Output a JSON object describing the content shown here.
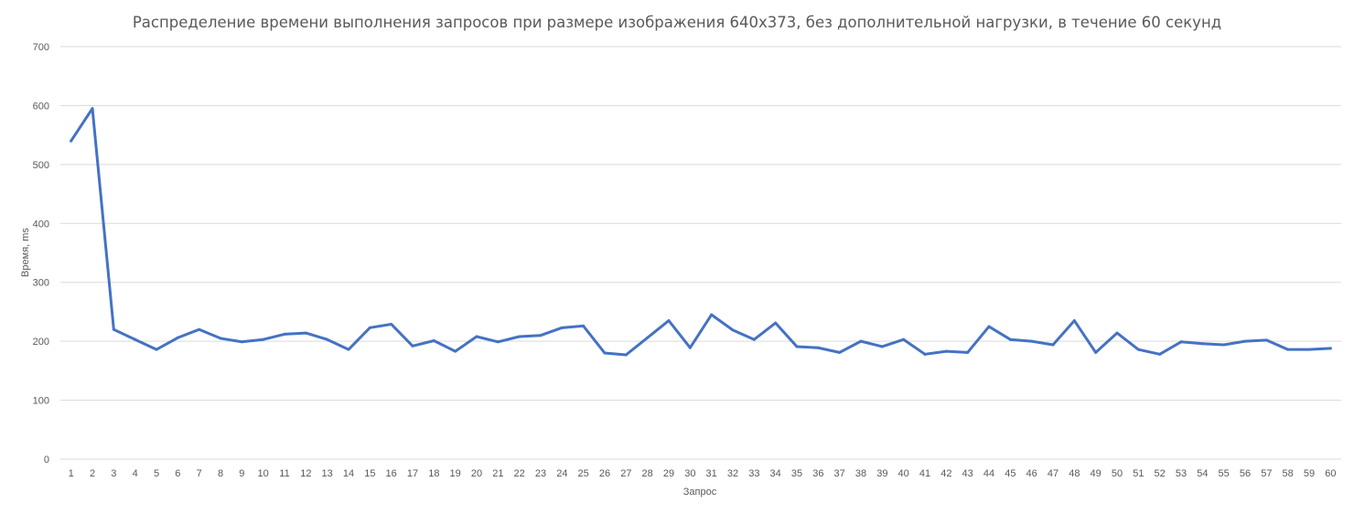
{
  "chart_data": {
    "type": "line",
    "title": "Распределение времени выполнения запросов при размере изображения 640x373, без дополнительной нагрузки, в течение 60 секунд",
    "xlabel": "Запрос",
    "ylabel": "Время, ms",
    "ylim": [
      0,
      700
    ],
    "yticks": [
      0,
      100,
      200,
      300,
      400,
      500,
      600,
      700
    ],
    "grid": true,
    "legend": "none",
    "line_color": "#4472c4",
    "categories": [
      "1",
      "2",
      "3",
      "4",
      "5",
      "6",
      "7",
      "8",
      "9",
      "10",
      "11",
      "12",
      "13",
      "14",
      "15",
      "16",
      "17",
      "18",
      "19",
      "20",
      "21",
      "22",
      "23",
      "24",
      "25",
      "26",
      "27",
      "28",
      "29",
      "30",
      "31",
      "32",
      "33",
      "34",
      "35",
      "36",
      "37",
      "38",
      "39",
      "40",
      "41",
      "42",
      "43",
      "44",
      "45",
      "46",
      "47",
      "48",
      "49",
      "50",
      "51",
      "52",
      "53",
      "54",
      "55",
      "56",
      "57",
      "58",
      "59",
      "60"
    ],
    "series": [
      {
        "values": [
          540,
          595,
          220,
          203,
          186,
          206,
          220,
          205,
          199,
          203,
          212,
          214,
          203,
          186,
          223,
          229,
          192,
          201,
          183,
          208,
          199,
          208,
          210,
          223,
          226,
          180,
          177,
          206,
          235,
          189,
          245,
          219,
          203,
          231,
          191,
          189,
          181,
          200,
          191,
          203,
          178,
          183,
          181,
          225,
          203,
          200,
          194,
          235,
          181,
          214,
          186,
          178,
          199,
          196,
          194,
          200,
          202,
          186,
          186,
          188
        ]
      }
    ]
  }
}
